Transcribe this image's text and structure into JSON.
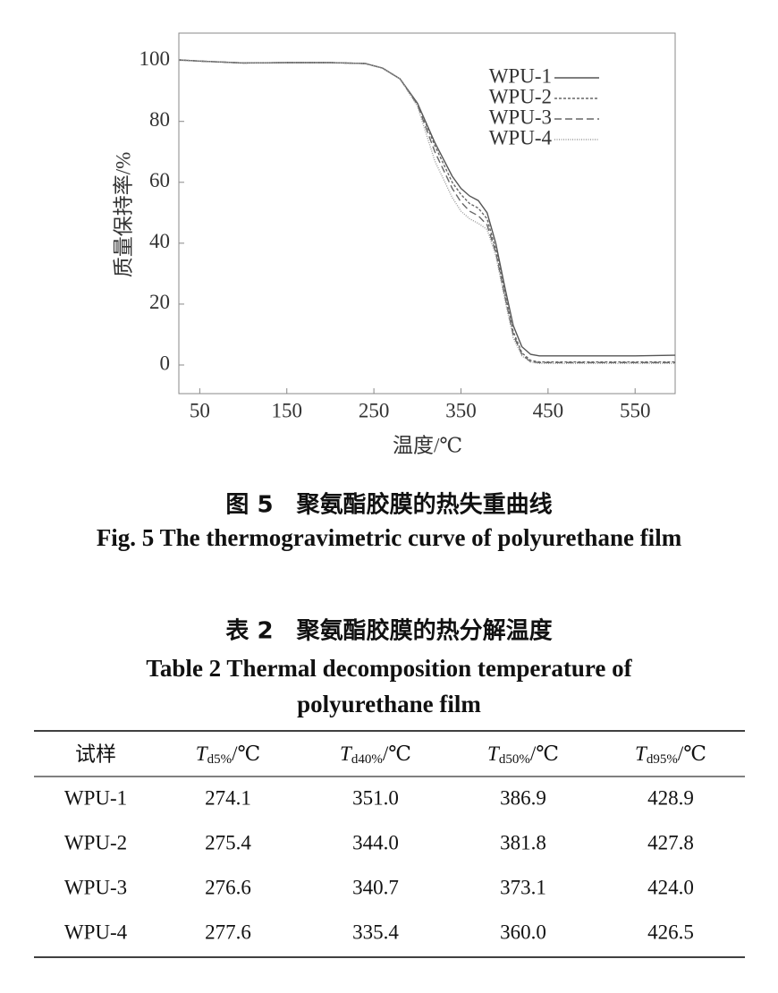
{
  "chart_data": {
    "type": "line",
    "x_label": "温度/℃",
    "y_label": "质量保持率/%",
    "x": [
      26,
      50,
      100,
      150,
      200,
      240,
      260,
      280,
      300,
      320,
      340,
      350,
      360,
      370,
      380,
      390,
      400,
      410,
      420,
      430,
      440,
      460,
      500,
      550,
      596
    ],
    "series": [
      {
        "name": "WPU-1",
        "color": "#555555",
        "line_style": "solid",
        "values": [
          100.2,
          99.8,
          99.2,
          99.3,
          99.3,
          99,
          97.5,
          94,
          86,
          73,
          62,
          58,
          55.5,
          54,
          50,
          40,
          26,
          13,
          6,
          3.5,
          3,
          3,
          3,
          3,
          3.2
        ]
      },
      {
        "name": "WPU-2",
        "color": "#666666",
        "line_style": "dashed",
        "values": [
          100.2,
          99.8,
          99.2,
          99.3,
          99.3,
          99,
          97.5,
          94,
          86,
          72,
          60,
          56,
          53,
          51.5,
          48,
          38,
          24,
          11,
          4,
          1.5,
          1,
          1,
          1,
          1,
          1
        ]
      },
      {
        "name": "WPU-3",
        "color": "#666666",
        "line_style": "long-dashed",
        "values": [
          100.2,
          99.8,
          99.2,
          99.3,
          99.3,
          99,
          97.5,
          94,
          85.5,
          70,
          58,
          53.5,
          50.5,
          49,
          46,
          37,
          23,
          10,
          3.5,
          1,
          0.8,
          0.8,
          0.8,
          0.8,
          0.8
        ]
      },
      {
        "name": "WPU-4",
        "color": "#999999",
        "line_style": "dotted",
        "values": [
          100.2,
          99.8,
          99.2,
          99.3,
          99.3,
          99,
          97.5,
          94,
          85,
          67,
          55,
          50.5,
          48,
          46.5,
          44.5,
          36,
          22,
          9,
          3,
          1,
          0.5,
          0.5,
          0.5,
          0.5,
          0.5
        ]
      }
    ],
    "xlim": [
      26,
      596
    ],
    "ylim": [
      -9.4,
      109
    ],
    "xticks": [
      50,
      150,
      250,
      350,
      450,
      550
    ],
    "yticks": [
      0,
      20,
      40,
      60,
      80,
      100
    ],
    "legend": "upper right"
  },
  "figure_caption": {
    "cn": "图 5　聚氨酯胶膜的热失重曲线",
    "en": "Fig. 5 The thermogravimetric curve of polyurethane film"
  },
  "table": {
    "caption_cn": "表 2　聚氨酯胶膜的热分解温度",
    "caption_en_1": "Table 2 Thermal decomposition temperature of",
    "caption_en_2": "polyurethane film",
    "header": [
      "试样",
      {
        "symbol": "T",
        "subscript": "d5%",
        "unit": "/℃"
      },
      {
        "symbol": "T",
        "subscript": "d40%",
        "unit": "/℃"
      },
      {
        "symbol": "T",
        "subscript": "d50%",
        "unit": "/℃"
      },
      {
        "symbol": "T",
        "subscript": "d95%",
        "unit": "/℃"
      }
    ],
    "rows": [
      [
        "WPU-1",
        "274.1",
        "351.0",
        "386.9",
        "428.9"
      ],
      [
        "WPU-2",
        "275.4",
        "344.0",
        "381.8",
        "427.8"
      ],
      [
        "WPU-3",
        "276.6",
        "340.7",
        "373.1",
        "424.0"
      ],
      [
        "WPU-4",
        "277.6",
        "335.4",
        "360.0",
        "426.5"
      ]
    ]
  }
}
